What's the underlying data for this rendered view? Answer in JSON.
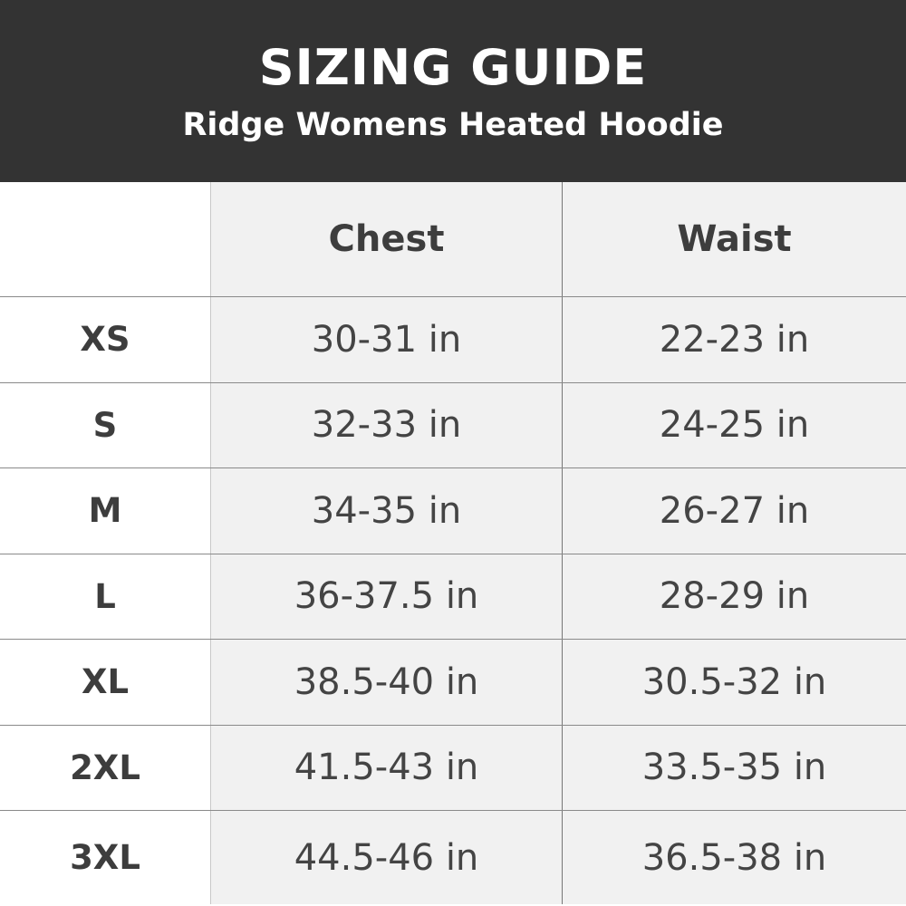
{
  "header": {
    "title": "SIZING GUIDE",
    "subtitle": "Ridge Womens Heated Hoodie"
  },
  "table": {
    "columns": [
      "",
      "Chest",
      "Waist"
    ],
    "rows": [
      {
        "size": "XS",
        "chest": "30-31 in",
        "waist": "22-23 in"
      },
      {
        "size": "S",
        "chest": "32-33 in",
        "waist": "24-25 in"
      },
      {
        "size": "M",
        "chest": "34-35 in",
        "waist": "26-27 in"
      },
      {
        "size": "L",
        "chest": "36-37.5 in",
        "waist": "28-29 in"
      },
      {
        "size": "XL",
        "chest": "38.5-40 in",
        "waist": "30.5-32 in"
      },
      {
        "size": "2XL",
        "chest": "41.5-43 in",
        "waist": "33.5-35 in"
      },
      {
        "size": "3XL",
        "chest": "44.5-46 in",
        "waist": "36.5-38 in"
      }
    ]
  },
  "colors": {
    "header_bg": "#333333",
    "cell_bg": "#f1f1f1",
    "text": "#444444"
  }
}
